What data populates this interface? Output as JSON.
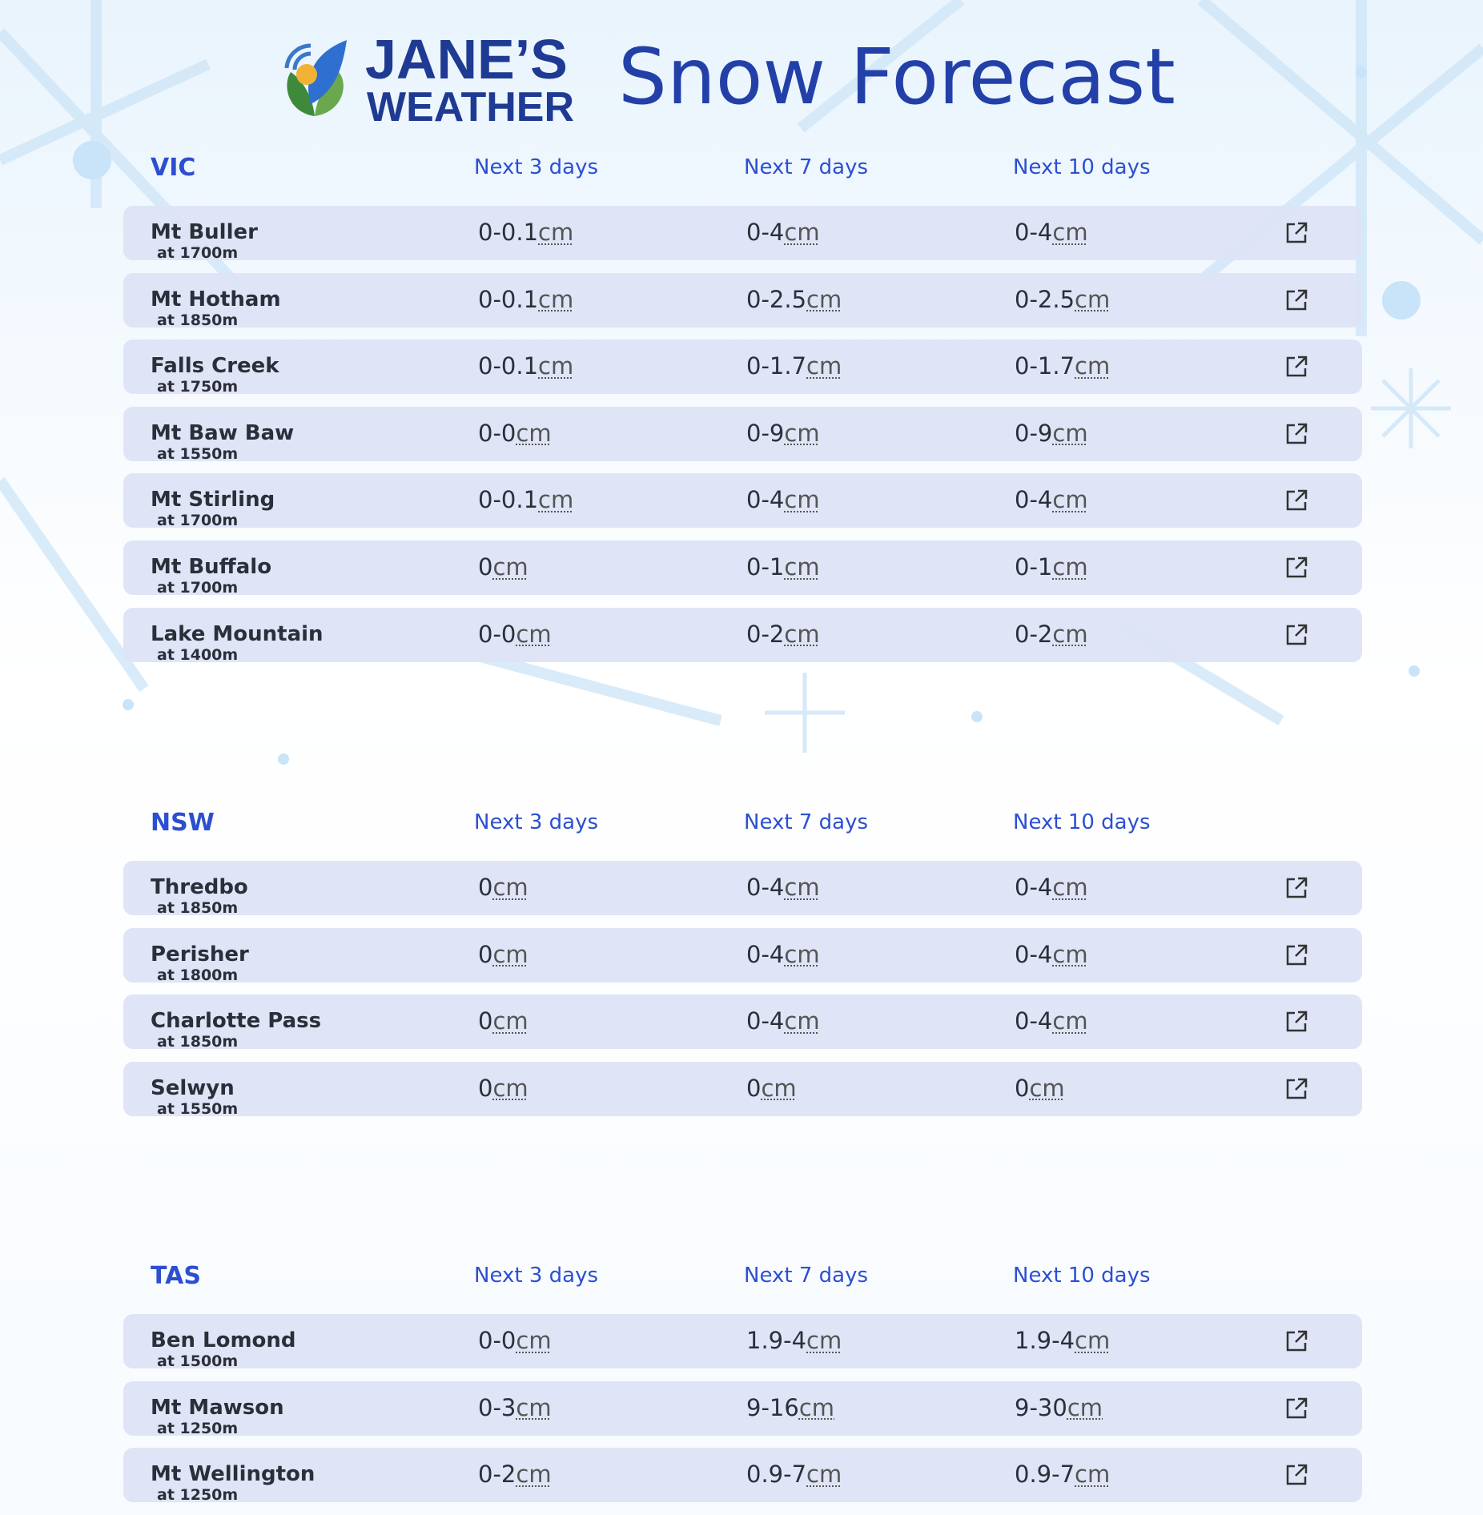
{
  "header": {
    "brand_top": "JANE’S",
    "brand_bottom": "WEATHER",
    "title": "Snow Forecast"
  },
  "unit": "cm",
  "sections": [
    {
      "region": "VIC",
      "columns": [
        "Next 3 days",
        "Next 7 days",
        "Next 10 days"
      ],
      "rows": [
        {
          "name": "Mt Buller",
          "elevation": "at 1700m",
          "values": [
            "0-0.1",
            "0-4",
            "0-4"
          ]
        },
        {
          "name": "Mt Hotham",
          "elevation": "at 1850m",
          "values": [
            "0-0.1",
            "0-2.5",
            "0-2.5"
          ]
        },
        {
          "name": "Falls Creek",
          "elevation": "at 1750m",
          "values": [
            "0-0.1",
            "0-1.7",
            "0-1.7"
          ]
        },
        {
          "name": "Mt Baw Baw",
          "elevation": "at 1550m",
          "values": [
            "0-0",
            "0-9",
            "0-9"
          ]
        },
        {
          "name": "Mt Stirling",
          "elevation": "at 1700m",
          "values": [
            "0-0.1",
            "0-4",
            "0-4"
          ]
        },
        {
          "name": "Mt Buffalo",
          "elevation": "at 1700m",
          "values": [
            "0",
            "0-1",
            "0-1"
          ]
        },
        {
          "name": "Lake Mountain",
          "elevation": "at 1400m",
          "values": [
            "0-0",
            "0-2",
            "0-2"
          ]
        }
      ]
    },
    {
      "region": "NSW",
      "columns": [
        "Next 3 days",
        "Next 7 days",
        "Next 10 days"
      ],
      "rows": [
        {
          "name": "Thredbo",
          "elevation": "at 1850m",
          "values": [
            "0",
            "0-4",
            "0-4"
          ]
        },
        {
          "name": "Perisher",
          "elevation": "at 1800m",
          "values": [
            "0",
            "0-4",
            "0-4"
          ]
        },
        {
          "name": "Charlotte Pass",
          "elevation": "at 1850m",
          "values": [
            "0",
            "0-4",
            "0-4"
          ]
        },
        {
          "name": "Selwyn",
          "elevation": "at 1550m",
          "values": [
            "0",
            "0",
            "0"
          ]
        }
      ]
    },
    {
      "region": "TAS",
      "columns": [
        "Next 3 days",
        "Next 7 days",
        "Next 10 days"
      ],
      "rows": [
        {
          "name": "Ben Lomond",
          "elevation": "at 1500m",
          "values": [
            "0-0",
            "1.9-4",
            "1.9-4"
          ]
        },
        {
          "name": "Mt Mawson",
          "elevation": "at 1250m",
          "values": [
            "0-3",
            "9-16",
            "9-30"
          ]
        },
        {
          "name": "Mt Wellington",
          "elevation": "at 1250m",
          "values": [
            "0-2",
            "0.9-7",
            "0.9-7"
          ]
        }
      ]
    }
  ]
}
